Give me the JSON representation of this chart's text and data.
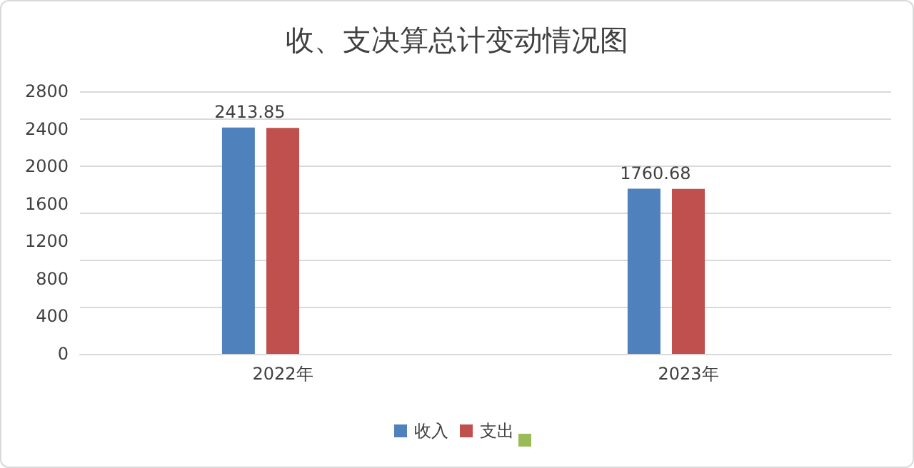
{
  "chart_data": {
    "type": "bar",
    "title": "收、支决算总计变动情况图",
    "categories": [
      "2022年",
      "2023年"
    ],
    "series": [
      {
        "name": "收入",
        "color": "#4f81bd",
        "values": [
          2413.85,
          1760.68
        ],
        "value_labels": [
          "2413.85",
          "1760.68"
        ]
      },
      {
        "name": "支出",
        "color": "#c0504d",
        "values": [
          2410,
          1760
        ]
      },
      {
        "color": "#9bbb59",
        "values": [
          null,
          null
        ]
      }
    ],
    "ylim": [
      0,
      2800
    ],
    "yticks": [
      0,
      400,
      800,
      1200,
      1600,
      2000,
      2400,
      2800
    ],
    "grid": "y",
    "legend": "bottom"
  }
}
